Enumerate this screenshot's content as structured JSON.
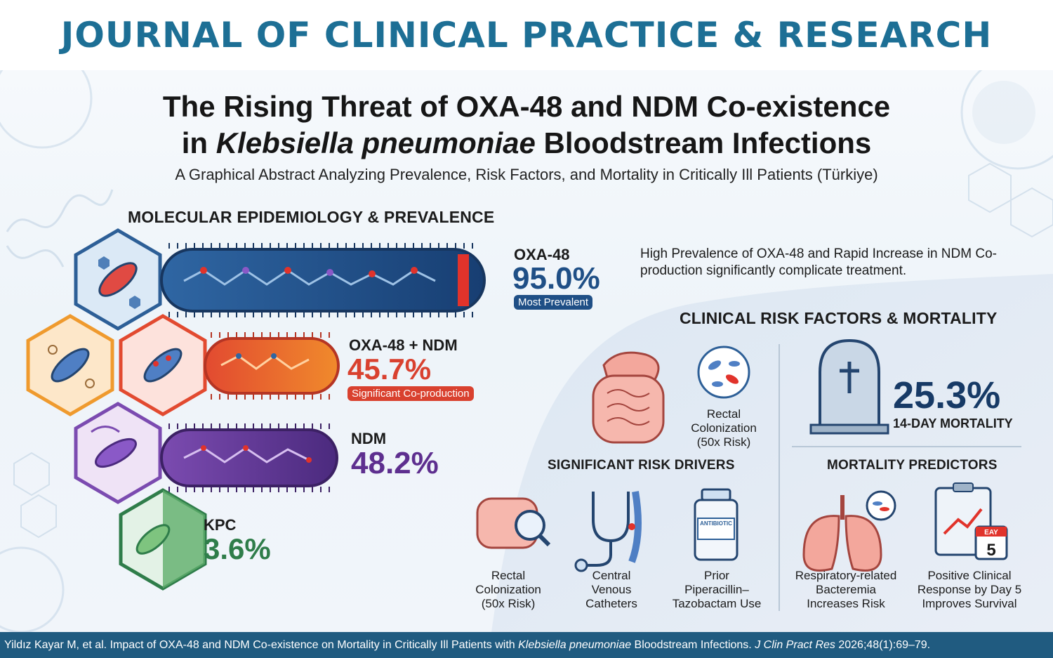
{
  "journal": {
    "title": "JOURNAL OF CLINICAL PRACTICE & RESEARCH"
  },
  "title": {
    "line1": "The Rising Threat of OXA-48 and NDM Co-existence",
    "line2_prefix": "in ",
    "line2_italic": "Klebsiella pneumoniae",
    "line2_suffix": " Bloodstream Infections",
    "subtitle": "A Graphical Abstract Analyzing Prevalence, Risk Factors, and Mortality in Critically Ill Patients (Türkiye)"
  },
  "molecular": {
    "heading": "MOLECULAR EPIDEMIOLOGY & PREVALENCE",
    "items": [
      {
        "name": "OXA-48",
        "value": "95.0%",
        "badge": "Most Prevalent",
        "color": "#1f4f86"
      },
      {
        "name": "OXA-48 + NDM",
        "value": "45.7%",
        "badge": "Significant Co-production",
        "color": "#d9412f"
      },
      {
        "name": "NDM",
        "value": "48.2%",
        "badge": "",
        "color": "#5e2f8f"
      },
      {
        "name": "KPC",
        "value": "3.6%",
        "badge": "",
        "color": "#2f7d4a"
      }
    ],
    "note": "High Prevalence of OXA-48 and Rapid Increase in NDM Co-production significantly complicate treatment."
  },
  "clinical": {
    "heading": "CLINICAL RISK FACTORS & MORTALITY",
    "top_caption": "Rectal\nColonization\n(50x Risk)",
    "mortality_value": "25.3%",
    "mortality_label": "14-DAY MORTALITY",
    "drivers_heading": "SIGNIFICANT RISK DRIVERS",
    "drivers": [
      {
        "label": "Rectal\nColonization\n(50x Risk)"
      },
      {
        "label": "Central\nVenous\nCatheters"
      },
      {
        "label": "Prior\nPiperacillin–\nTazobactam Use"
      }
    ],
    "bottle_label": "ANTIBIOTIC",
    "predictors_heading": "MORTALITY PREDICTORS",
    "predictors": [
      {
        "label": "Respiratory-related\nBacteremia\nIncreases Risk"
      },
      {
        "label": "Positive Clinical\nResponse by Day 5\nImproves Survival"
      }
    ],
    "calendar_top": "EAY",
    "calendar_day": "5"
  },
  "citation": {
    "prefix": "Yildız Kayar M, et al. Impact of OXA-48 and NDM Co-existence on Mortality in Critically Ill Patients with ",
    "italic1": "Klebsiella pneumoniae",
    "middle": " Bloodstream Infections. ",
    "italic2": "J Clin Pract Res",
    "suffix": " 2026;48(1):69–79."
  },
  "colors": {
    "header": "#1d6f95",
    "footer": "#205b80",
    "oxa": "#1f4f86",
    "combo": "#d9412f",
    "ndm": "#5e2f8f",
    "kpc": "#2f7d4a",
    "mortality": "#173a66"
  }
}
